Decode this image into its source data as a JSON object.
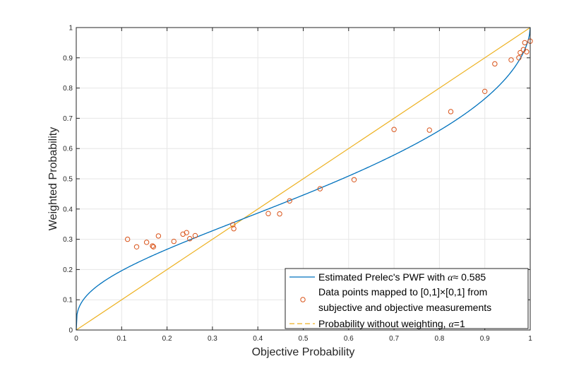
{
  "chart_data": {
    "type": "scatter",
    "xlabel": "Objective Probability",
    "ylabel": "Weighted Probability",
    "xlim": [
      0,
      1
    ],
    "ylim": [
      0,
      1
    ],
    "x_ticks": [
      "0",
      "0.1",
      "0.2",
      "0.3",
      "0.4",
      "0.5",
      "0.6",
      "0.7",
      "0.8",
      "0.9",
      "1"
    ],
    "y_ticks": [
      "0",
      "0.1",
      "0.2",
      "0.3",
      "0.4",
      "0.5",
      "0.6",
      "0.7",
      "0.8",
      "0.9",
      "1"
    ],
    "grid": true,
    "legend_position": "bottom-right",
    "alpha_value": 0.585,
    "series": [
      {
        "name": "Estimated Prelec's PWF with α≈ 0.585",
        "kind": "line",
        "color": "#0072bd",
        "function": "prelec",
        "alpha": 0.585
      },
      {
        "name": "Data points mapped to [0,1]×[0,1] from subjective and objective measurements",
        "kind": "scatter",
        "color": "#d95319",
        "points": [
          [
            0.113,
            0.3
          ],
          [
            0.133,
            0.275
          ],
          [
            0.155,
            0.29
          ],
          [
            0.168,
            0.278
          ],
          [
            0.17,
            0.275
          ],
          [
            0.181,
            0.311
          ],
          [
            0.215,
            0.293
          ],
          [
            0.235,
            0.317
          ],
          [
            0.243,
            0.322
          ],
          [
            0.25,
            0.302
          ],
          [
            0.262,
            0.312
          ],
          [
            0.345,
            0.348
          ],
          [
            0.347,
            0.335
          ],
          [
            0.423,
            0.385
          ],
          [
            0.448,
            0.384
          ],
          [
            0.47,
            0.427
          ],
          [
            0.537,
            0.467
          ],
          [
            0.612,
            0.497
          ],
          [
            0.7,
            0.663
          ],
          [
            0.778,
            0.661
          ],
          [
            0.825,
            0.722
          ],
          [
            0.9,
            0.789
          ],
          [
            0.922,
            0.88
          ],
          [
            0.958,
            0.893
          ],
          [
            0.975,
            0.9
          ],
          [
            0.978,
            0.917
          ],
          [
            0.985,
            0.927
          ],
          [
            0.988,
            0.95
          ],
          [
            0.992,
            0.92
          ],
          [
            1.0,
            0.955
          ]
        ]
      },
      {
        "name": "Probability without weighting, α=1",
        "kind": "line",
        "color": "#edb120",
        "points": [
          [
            0,
            0
          ],
          [
            1,
            1
          ]
        ]
      }
    ]
  },
  "legend": {
    "line1": "Estimated Prelec's PWF with ",
    "line1_math": "α",
    "line1_rest": "≈ 0.585",
    "line2": "Data points mapped to [0,1]×[0,1] from",
    "line3": "subjective and objective measurements",
    "line4": "Probability without weighting, ",
    "line4_math": "α",
    "line4_rest": "=1"
  }
}
